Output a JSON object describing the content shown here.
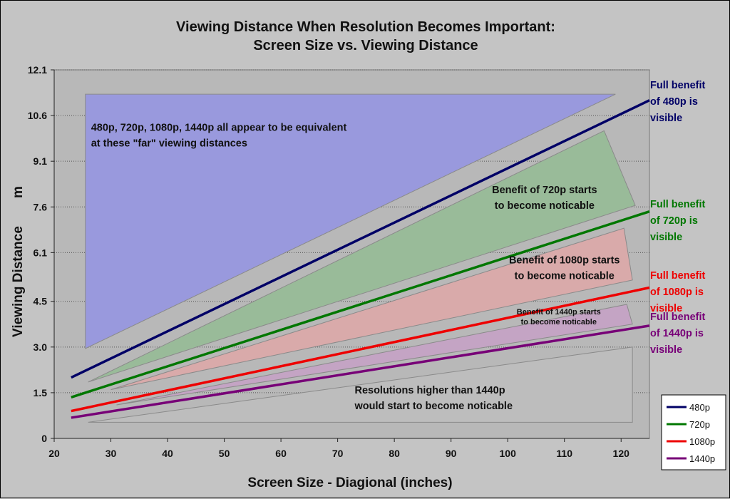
{
  "chart_data": {
    "type": "line",
    "title_lines": [
      "Viewing Distance When Resolution Becomes Important:",
      "Screen Size vs. Viewing Distance"
    ],
    "xlabel": "Screen Size - Diagional (inches)",
    "ylabel": "Viewing Distance",
    "ylabel_unit": "m",
    "xlim": [
      20,
      125
    ],
    "ylim": [
      0,
      12.1
    ],
    "x_ticks": [
      "20",
      "30",
      "40",
      "50",
      "60",
      "70",
      "80",
      "90",
      "100",
      "110",
      "120"
    ],
    "y_ticks": [
      "0",
      "1.5",
      "3.0",
      "4.5",
      "6.1",
      "7.6",
      "9.1",
      "10.6",
      "12.1"
    ],
    "grid": "horizontal dotted",
    "legend_position": "bottom-right",
    "series": [
      {
        "name": "480p",
        "color": "#000066",
        "x": [
          23,
          125
        ],
        "y": [
          2.0,
          11.1
        ]
      },
      {
        "name": "720p",
        "color": "#007700",
        "x": [
          23,
          125
        ],
        "y": [
          1.35,
          7.45
        ]
      },
      {
        "name": "1080p",
        "color": "#ee0000",
        "x": [
          23,
          125
        ],
        "y": [
          0.9,
          4.95
        ]
      },
      {
        "name": "1440p",
        "color": "#770077",
        "x": [
          23,
          125
        ],
        "y": [
          0.68,
          3.7
        ]
      }
    ],
    "regions": [
      {
        "key": "far",
        "color": "#9999dd",
        "lines": [
          "480p, 720p, 1080p, 1440p all appear to be equivalent",
          "at these \"far\" viewing distances"
        ],
        "polygon": [
          [
            25.5,
            11.3
          ],
          [
            119,
            11.3
          ],
          [
            25.5,
            2.95
          ]
        ],
        "label_x": 26.5,
        "label_y": 10.1,
        "size": "normal"
      },
      {
        "key": "720",
        "color": "#99bb99",
        "lines": [
          "Benefit of 720p starts",
          "to become noticable"
        ],
        "polygon": [
          [
            26,
            1.85
          ],
          [
            117,
            10.1
          ],
          [
            122.5,
            7.65
          ]
        ],
        "label_x": 106.5,
        "label_y": 8.05,
        "size": "normal",
        "anchor": "middle"
      },
      {
        "key": "1080",
        "color": "#d9aaaa",
        "lines": [
          "Benefit of 1080p starts",
          "to become noticable"
        ],
        "polygon": [
          [
            30,
            1.6
          ],
          [
            120.5,
            6.9
          ],
          [
            122,
            5.2
          ]
        ],
        "label_x": 110,
        "label_y": 5.75,
        "size": "normal",
        "anchor": "middle"
      },
      {
        "key": "1440",
        "color": "#c4a4c4",
        "lines": [
          "Benefit of 1440p starts",
          "to become noticable"
        ],
        "polygon": [
          [
            31,
            1.1
          ],
          [
            121,
            4.4
          ],
          [
            122,
            3.75
          ]
        ],
        "label_x": 109,
        "label_y": 4.07,
        "size": "small",
        "anchor": "middle"
      },
      {
        "key": "higher",
        "color": "#bdbdbd",
        "lines": [
          "Resolutions higher than 1440p",
          "would start to become noticable"
        ],
        "polygon": [
          [
            26,
            0.53
          ],
          [
            122,
            3.0
          ],
          [
            122,
            0.53
          ]
        ],
        "label_x": 73,
        "label_y": 1.48,
        "size": "normal"
      }
    ],
    "side_labels": [
      {
        "series": "480p",
        "color": "#000066",
        "lines": [
          "Full benefit",
          "of 480p is",
          "visible"
        ],
        "y": 11.3
      },
      {
        "series": "720p",
        "color": "#007700",
        "lines": [
          "Full benefit",
          "of 720p is",
          "visible"
        ],
        "y": 7.4
      },
      {
        "series": "1080p",
        "color": "#ee0000",
        "lines": [
          "Full benefit",
          "of 1080p is",
          "visible"
        ],
        "y": 5.05
      },
      {
        "series": "1440p",
        "color": "#770077",
        "lines": [
          "Full benefit",
          "of 1440p is",
          "visible"
        ],
        "y": 3.7
      }
    ],
    "colors": {
      "plot_background": "#b8b8b8",
      "page_background": "#c4c4c4"
    }
  }
}
